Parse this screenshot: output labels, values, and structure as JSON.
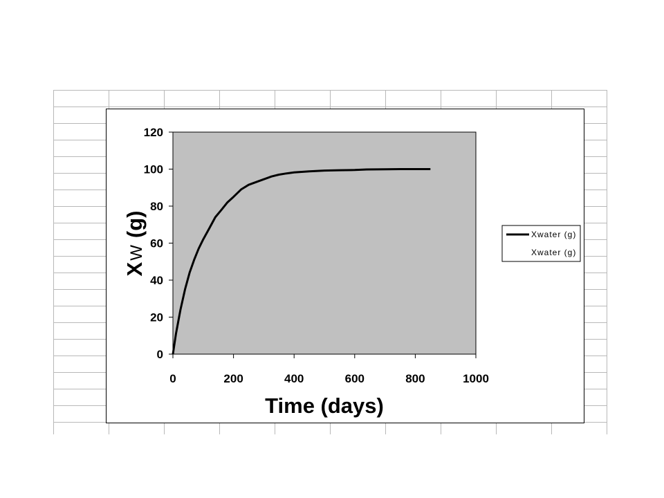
{
  "chart_data": {
    "type": "line",
    "title": "",
    "xlabel": "Time (days)",
    "ylabel_main": "X",
    "ylabel_sub": "W",
    "ylabel_unit": "(g)",
    "xlim": [
      0,
      1000
    ],
    "ylim": [
      0,
      120
    ],
    "xticks": [
      "0",
      "200",
      "400",
      "600",
      "800",
      "1000"
    ],
    "yticks": [
      "0",
      "20",
      "40",
      "60",
      "80",
      "100",
      "120"
    ],
    "plot_background": "#c0c0c0",
    "grid": false,
    "legend_position": "right",
    "series": [
      {
        "name": "Xwater (g)",
        "color": "#000000",
        "x": [
          0,
          10,
          25,
          40,
          55,
          70,
          85,
          100,
          120,
          140,
          160,
          180,
          200,
          225,
          250,
          275,
          300,
          325,
          350,
          375,
          400,
          450,
          500,
          550,
          600,
          640,
          700,
          750,
          800,
          850
        ],
        "y": [
          0,
          11,
          24,
          35,
          44,
          51,
          57,
          62,
          68,
          74,
          78,
          82,
          85,
          89,
          91.5,
          93,
          94.5,
          96,
          97,
          97.7,
          98.2,
          98.8,
          99.2,
          99.4,
          99.5,
          99.8,
          99.9,
          100,
          100,
          100
        ]
      },
      {
        "name": "Xwater (g)",
        "color": "#ffffff",
        "x": [],
        "y": []
      }
    ]
  }
}
